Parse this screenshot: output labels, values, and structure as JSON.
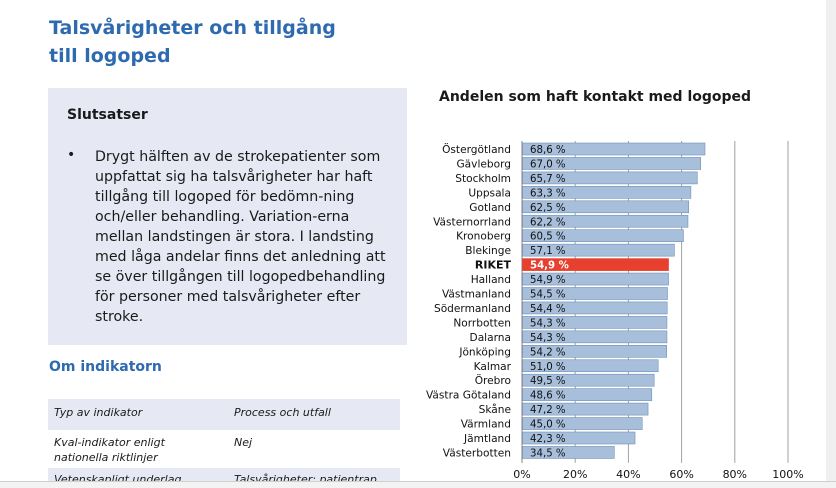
{
  "page": {
    "title_line1": "Talsvårigheter och tillgång",
    "title_line2": "till logoped"
  },
  "conclusions": {
    "heading": "Slutsatser",
    "bullet_symbol": "•",
    "text": "Drygt hälften av de strokepatienter som uppfattat sig ha talsvårigheter har haft tillgång till logoped för bedömn-ning och/eller behandling. Variation-erna mellan landstingen är stora. I landsting med låga andelar finns det anledning att se över tillgången till logopedbehandling för personer med talsvårigheter efter stroke."
  },
  "indicator": {
    "heading": "Om indikatorn",
    "rows": [
      {
        "key": "Typ av indikator",
        "value": "Process och utfall"
      },
      {
        "key": "Kval-indikator enligt nationella riktlinjer",
        "value": "Nej"
      },
      {
        "key": "Vetenskapligt underlag",
        "value": "Talsvårigheter: patientrap"
      }
    ]
  },
  "colors": {
    "bar": "#a7bfdb",
    "bar_border": "#6f8fb6",
    "highlight": "#e8402e",
    "accent": "#2e6ab0"
  },
  "chart_data": {
    "type": "bar",
    "orientation": "horizontal",
    "title": "Andelen som haft kontakt med logoped",
    "categories": [
      "Östergötland",
      "Gävleborg",
      "Stockholm",
      "Uppsala",
      "Gotland",
      "Västernorrland",
      "Kronoberg",
      "Blekinge",
      "RIKET",
      "Halland",
      "Västmanland",
      "Södermanland",
      "Norrbotten",
      "Dalarna",
      "Jönköping",
      "Kalmar",
      "Örebro",
      "Västra Götaland",
      "Skåne",
      "Värmland",
      "Jämtland",
      "Västerbotten"
    ],
    "values": [
      68.6,
      67.0,
      65.7,
      63.3,
      62.5,
      62.2,
      60.5,
      57.1,
      54.9,
      54.9,
      54.5,
      54.4,
      54.3,
      54.3,
      54.2,
      51.0,
      49.5,
      48.6,
      47.2,
      45.0,
      42.3,
      34.5
    ],
    "value_labels": [
      "68,6 %",
      "67,0 %",
      "65,7 %",
      "63,3 %",
      "62,5 %",
      "62,2 %",
      "60,5 %",
      "57,1 %",
      "54,9 %",
      "54,9 %",
      "54,5 %",
      "54,4 %",
      "54,3 %",
      "54,3 %",
      "54,2 %",
      "51,0 %",
      "49,5 %",
      "48,6 %",
      "47,2 %",
      "45,0 %",
      "42,3 %",
      "34,5 %"
    ],
    "highlight_category": "RIKET",
    "xlim": [
      0,
      100
    ],
    "xticks": [
      "0%",
      "20%",
      "40%",
      "60%",
      "80%",
      "100%"
    ],
    "gridlines": true
  }
}
